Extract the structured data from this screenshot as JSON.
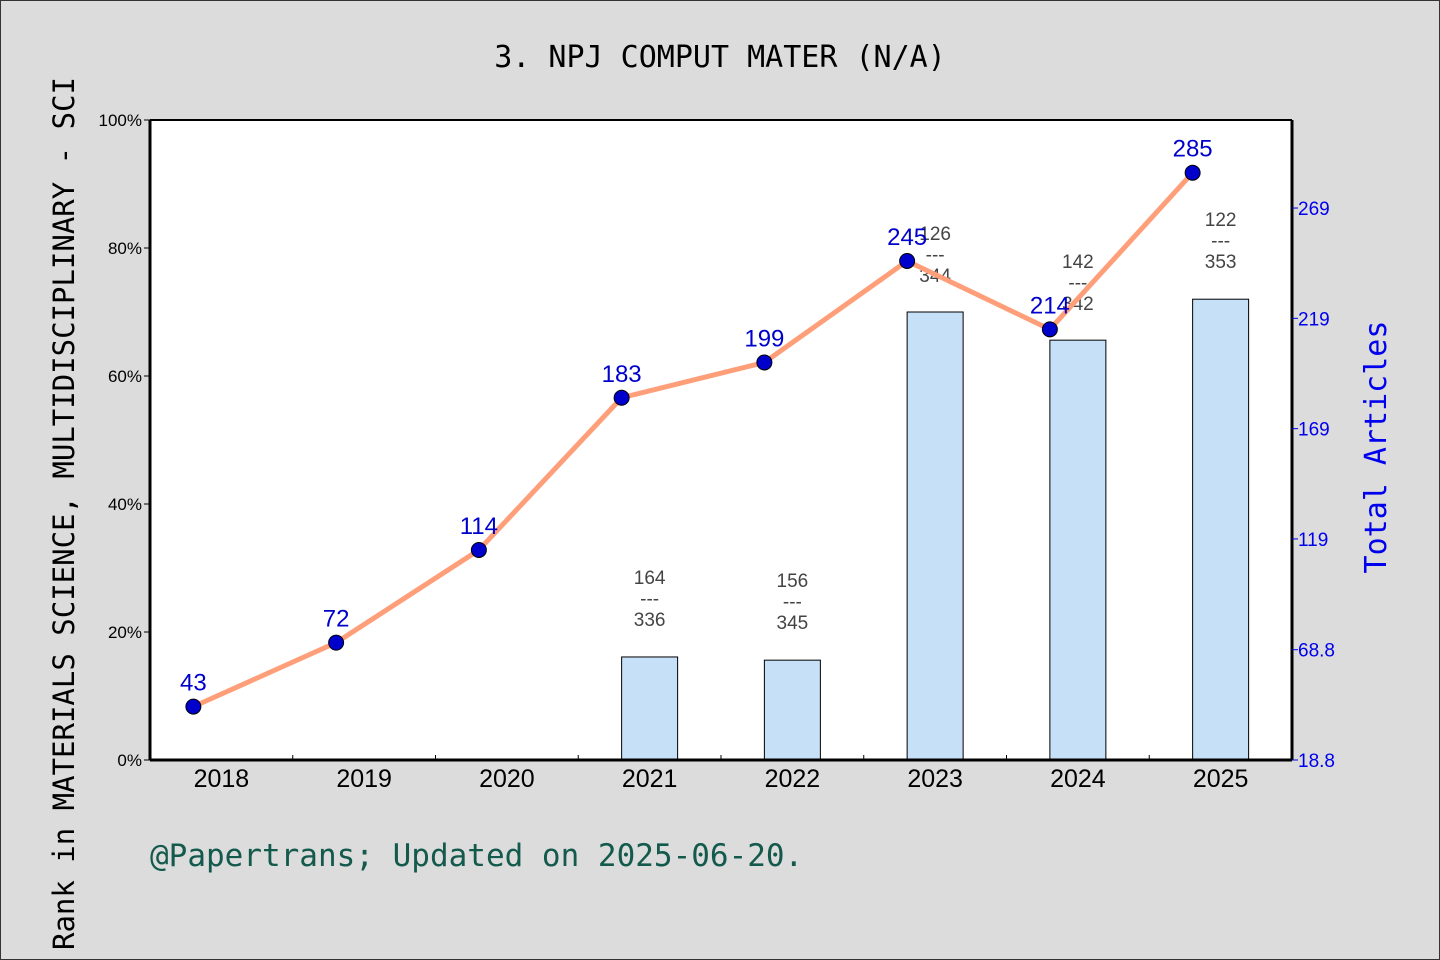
{
  "chart_data": {
    "type": "bar+line",
    "title": "3. NPJ COMPUT MATER (N/A)",
    "ylabel": "Rank in MATERIALS SCIENCE, MULTIDISCIPLINARY - SCI",
    "y2label": "Total Articles",
    "categories": [
      "2018",
      "2019",
      "2020",
      "2021",
      "2022",
      "2023",
      "2024",
      "2025"
    ],
    "ylim": [
      0,
      100
    ],
    "yticks": [
      "0%",
      "20%",
      "40%",
      "60%",
      "80%",
      "100%"
    ],
    "y2lim": [
      18.8,
      308.9
    ],
    "y2ticks": [
      "18.8",
      "68.8",
      "119",
      "169",
      "219",
      "269"
    ],
    "bars": {
      "values": [
        null,
        null,
        null,
        16.1,
        15.6,
        70.0,
        65.6,
        72.0
      ],
      "rank": [
        null,
        null,
        null,
        "164",
        "156",
        "126",
        "142",
        "122"
      ],
      "total": [
        null,
        null,
        null,
        "336",
        "345",
        "344",
        "342",
        "353"
      ],
      "separator": "---",
      "color": "#c6e0f7"
    },
    "line": {
      "values": [
        43,
        72,
        114,
        183,
        199,
        245,
        214,
        285
      ],
      "color": "#ff9f7a",
      "marker_color": "#0000cc"
    },
    "grid": false,
    "legend": "none"
  },
  "footer": "@Papertrans; Updated on 2025-06-20."
}
